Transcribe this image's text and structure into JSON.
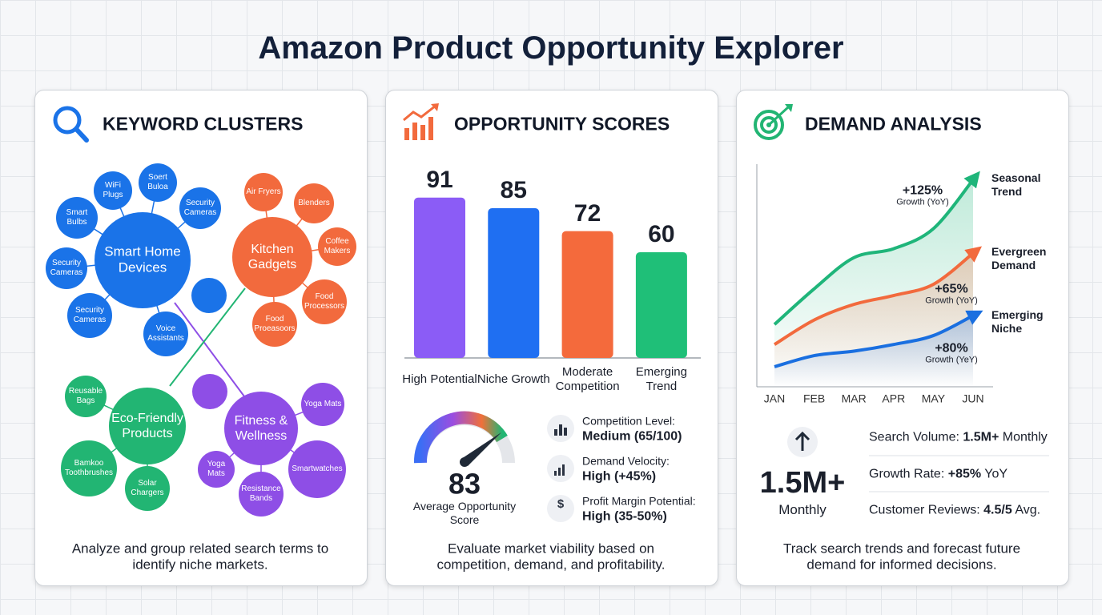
{
  "title": "Amazon Product Opportunity Explorer",
  "keyword_clusters": {
    "heading": "KEYWORD CLUSTERS",
    "clusters": [
      {
        "label": "Smart Home Devices",
        "color": "#1a73e8",
        "keywords": [
          "WiFi Plugs",
          "Soert Buloa",
          "Security Cameras",
          "Smart Bulbs",
          "Security Cameras",
          "Security Cameras",
          "Voice Assistants"
        ]
      },
      {
        "label": "Kitchen Gadgets",
        "color": "#f26a3d",
        "keywords": [
          "Air Fryers",
          "Blenders",
          "Coffee Makers",
          "Food Processors",
          "Food Proeasoors"
        ]
      },
      {
        "label": "Eco-Friendly Products",
        "color": "#22b573",
        "keywords": [
          "Reusable Bags",
          "Bamkoo Toothbrushes",
          "Solar Chargers"
        ]
      },
      {
        "label": "Fitness & Wellness",
        "color": "#8e4ee6",
        "keywords": [
          "Yoga Mats",
          "Smartwatches",
          "Yoga Mats",
          "Resistance Bands"
        ]
      }
    ],
    "caption": "Analyze and group related search terms to identify niche markets."
  },
  "opportunity_scores": {
    "heading": "OPPORTUNITY SCORES",
    "gauge": {
      "value": 83,
      "label": "Average Opportunity Score"
    },
    "metrics": [
      {
        "label": "Competition Level:",
        "value": "Medium (65/100)"
      },
      {
        "label": "Demand Velocity:",
        "value": "High (+45%)"
      },
      {
        "label": "Profit Margin Potential:",
        "value": "High (35-50%)"
      }
    ],
    "caption": "Evaluate market viability based on competition, demand, and profitability."
  },
  "demand_analysis": {
    "heading": "DEMAND ANALYSIS",
    "headline": {
      "value": "1.5M+",
      "label": "Monthly"
    },
    "stats": [
      {
        "label": "Search Volume:",
        "value": "1.5M+",
        "suffix": "Monthly"
      },
      {
        "label": "Growth Rate:",
        "value": "+85%",
        "suffix": "YoY"
      },
      {
        "label": "Customer Reviews:",
        "value": "4.5/5",
        "suffix": "Avg."
      }
    ],
    "caption": "Track search trends and forecast future demand for informed decisions."
  },
  "chart_data": [
    {
      "type": "bar",
      "categories": [
        "High Potential",
        "Niche Growth",
        "Moderate Competition",
        "Emerging Trend"
      ],
      "values": [
        91,
        85,
        72,
        60
      ],
      "colors": [
        "#8b5cf6",
        "#1f6ff2",
        "#f46a3c",
        "#1fbf78"
      ],
      "ylim": [
        0,
        100
      ]
    },
    {
      "type": "line",
      "categories": [
        "JAN",
        "FEB",
        "MAR",
        "APR",
        "MAY",
        "JUN"
      ],
      "ylim": [
        0,
        100
      ],
      "series": [
        {
          "name": "Seasonal Trend",
          "color": "#1fb57a",
          "values": [
            28,
            44,
            58,
            62,
            71,
            93
          ]
        },
        {
          "name": "Evergreen Demand",
          "color": "#f26a3d",
          "values": [
            19,
            30,
            37,
            41,
            46,
            60
          ]
        },
        {
          "name": "Emerging Niche",
          "color": "#1a6fe0",
          "values": [
            9,
            14,
            16,
            19,
            23,
            32
          ]
        }
      ],
      "annotations": [
        {
          "text": "+125%",
          "note": "Growth (YoY)"
        },
        {
          "text": "+65%",
          "note": "Growth (YoY)"
        },
        {
          "text": "+80%",
          "note": "Growth (YeY)"
        }
      ]
    }
  ]
}
